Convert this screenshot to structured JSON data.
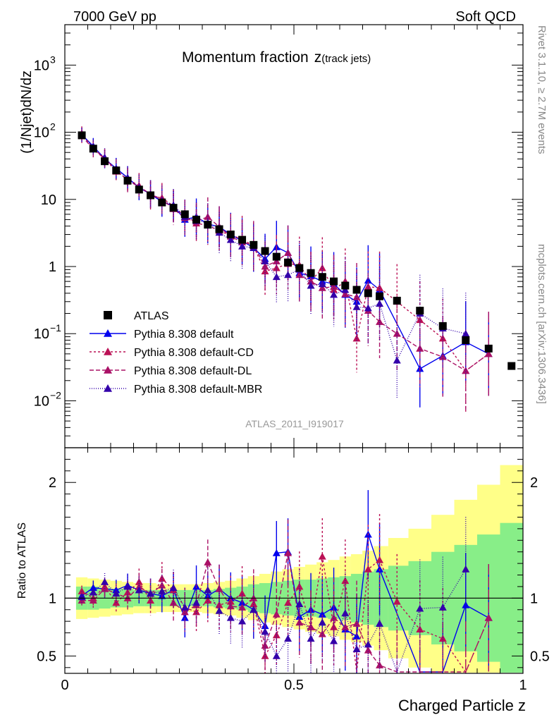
{
  "header": {
    "left": "7000 GeV pp",
    "right": "Soft QCD"
  },
  "side_labels": {
    "rivet": "Rivet 3.1.10, ≥ 2.7M events",
    "mcplots": "mcplots.cern.ch [arXiv:1306.3436]"
  },
  "chart_data": {
    "type": "scatter",
    "title_main": "Momentum fraction",
    "title_var": "z",
    "title_sub": "(track jets)",
    "analysis_id": "ATLAS_2011_I919017",
    "xlabel": "Charged Particle z",
    "ylabel": "(1/Njet)dN/dz",
    "ratio_ylabel": "Ratio to ATLAS",
    "xlim": [
      0,
      1
    ],
    "ylim": [
      0.002,
      4000
    ],
    "ratio_ylim": [
      0.35,
      2.3
    ],
    "yscale": "log",
    "x_ticks": [
      "0",
      "0.5",
      "1"
    ],
    "y_ticks": [
      {
        "v": 1000,
        "b": "10",
        "e": "3"
      },
      {
        "v": 100,
        "b": "10",
        "e": "2"
      },
      {
        "v": 10,
        "b": "10",
        "e": ""
      },
      {
        "v": 1,
        "b": "1",
        "e": ""
      },
      {
        "v": 0.1,
        "b": "10",
        "e": "−1"
      },
      {
        "v": 0.01,
        "b": "10",
        "e": "−2"
      }
    ],
    "ratio_ticks": [
      "0.5",
      "1",
      "2"
    ],
    "legend_position": "lower-left",
    "x": [
      0.037,
      0.062,
      0.087,
      0.112,
      0.137,
      0.162,
      0.187,
      0.212,
      0.237,
      0.262,
      0.287,
      0.312,
      0.337,
      0.362,
      0.387,
      0.412,
      0.437,
      0.462,
      0.487,
      0.512,
      0.537,
      0.562,
      0.587,
      0.612,
      0.637,
      0.662,
      0.687,
      0.725,
      0.775,
      0.825,
      0.875,
      0.925,
      0.975
    ],
    "band_inner": [
      0.1,
      0.1,
      0.09,
      0.08,
      0.08,
      0.07,
      0.07,
      0.07,
      0.07,
      0.07,
      0.07,
      0.07,
      0.08,
      0.09,
      0.1,
      0.12,
      0.13,
      0.14,
      0.15,
      0.16,
      0.16,
      0.17,
      0.18,
      0.19,
      0.21,
      0.23,
      0.25,
      0.28,
      0.32,
      0.4,
      0.46,
      0.55,
      0.65
    ],
    "band_outer": [
      0.18,
      0.17,
      0.16,
      0.15,
      0.14,
      0.13,
      0.13,
      0.12,
      0.12,
      0.12,
      0.12,
      0.13,
      0.14,
      0.15,
      0.17,
      0.19,
      0.21,
      0.23,
      0.25,
      0.27,
      0.29,
      0.31,
      0.33,
      0.36,
      0.38,
      0.41,
      0.45,
      0.52,
      0.6,
      0.72,
      0.85,
      0.98,
      1.15
    ],
    "series": [
      {
        "name": "ATLAS",
        "color": "#000000",
        "marker": "square",
        "values": [
          90,
          57,
          37,
          27,
          19,
          14,
          11.5,
          9,
          7.5,
          6,
          5,
          4.2,
          3.6,
          3,
          2.5,
          2.1,
          1.7,
          1.4,
          1.15,
          0.95,
          0.8,
          0.7,
          0.6,
          0.52,
          0.45,
          0.4,
          0.36,
          0.31,
          0.22,
          0.13,
          0.08,
          0.06,
          0.033
        ]
      },
      {
        "name": "Pythia 8.308 default",
        "color": "#0000ee",
        "marker": "triangle",
        "dash": "",
        "values": [
          92,
          62,
          40,
          29,
          21,
          15,
          12,
          9.2,
          8,
          5,
          5.5,
          4.3,
          3.9,
          3,
          2.4,
          1.9,
          1.3,
          1.95,
          1.6,
          0.8,
          0.72,
          0.6,
          0.55,
          0.38,
          0.3,
          0.62,
          0.45,
          null,
          0.03,
          0.047,
          0.075,
          0.05,
          null
        ],
        "ratio": [
          1.02,
          1.09,
          1.08,
          1.07,
          1.11,
          1.07,
          1.04,
          1.02,
          1.07,
          0.83,
          1.1,
          1.02,
          1.08,
          1.0,
          0.96,
          0.9,
          0.76,
          1.39,
          1.4,
          0.84,
          0.9,
          0.86,
          0.92,
          0.73,
          0.67,
          1.55,
          1.25,
          null,
          0.14,
          0.36,
          0.94,
          0.83,
          null
        ]
      },
      {
        "name": "Pythia 8.308 default-CD",
        "color": "#bb1155",
        "marker": "triangle",
        "dash": "3,3",
        "values": [
          96,
          57,
          41,
          26,
          20,
          16,
          11.3,
          10.5,
          8,
          5.5,
          4.4,
          4.1,
          3.4,
          2.9,
          2.6,
          2,
          0.85,
          0.95,
          1.1,
          1.05,
          0.6,
          0.95,
          0.45,
          0.6,
          0.085,
          0.5,
          0.48,
          0.3,
          0.16,
          0.085,
          0.028,
          0.05,
          null
        ],
        "ratio": [
          1.06,
          1.0,
          1.1,
          0.96,
          1.05,
          1.14,
          0.98,
          1.17,
          1.07,
          0.92,
          0.88,
          0.98,
          0.94,
          0.97,
          1.04,
          0.95,
          0.5,
          0.68,
          0.96,
          1.1,
          0.75,
          1.36,
          0.75,
          1.15,
          0.19,
          1.25,
          1.33,
          0.97,
          0.73,
          0.65,
          0.35,
          0.83,
          null
        ]
      },
      {
        "name": "Pythia 8.308 default-DL",
        "color": "#aa1166",
        "marker": "triangle",
        "dash": "6,3",
        "values": [
          88,
          56,
          40,
          28,
          19,
          15.5,
          12,
          10,
          7.2,
          5.3,
          4.7,
          5.5,
          3.9,
          2.8,
          2.3,
          2.1,
          1.0,
          1.2,
          1.6,
          0.75,
          0.6,
          0.48,
          0.5,
          0.39,
          0.35,
          0.22,
          0.15,
          0.1,
          0.06,
          0.045,
          0.028,
          0.05,
          null
        ],
        "ratio": [
          0.98,
          0.98,
          1.08,
          1.04,
          1.0,
          1.1,
          1.04,
          1.11,
          0.96,
          0.88,
          0.94,
          1.31,
          1.08,
          0.93,
          0.92,
          1.0,
          0.59,
          0.86,
          1.39,
          0.79,
          0.75,
          0.69,
          0.83,
          0.75,
          0.78,
          0.55,
          0.42,
          0.32,
          0.27,
          0.35,
          0.35,
          0.83,
          null
        ]
      },
      {
        "name": "Pythia 8.308 default-MBR",
        "color": "#3300aa",
        "marker": "triangle",
        "dash": "1,2",
        "values": [
          91,
          60,
          42,
          28,
          21,
          15,
          12,
          9.5,
          8.2,
          5.5,
          4.8,
          4.5,
          3.2,
          2.5,
          2.0,
          1.9,
          1.2,
          0.7,
          0.75,
          0.9,
          0.52,
          0.55,
          0.38,
          0.45,
          0.25,
          0.24,
          0.28,
          0.04,
          0.2,
          0.12,
          0.1,
          null,
          null
        ],
        "ratio": [
          1.01,
          1.05,
          1.14,
          1.04,
          1.1,
          1.07,
          1.04,
          1.06,
          1.09,
          0.92,
          0.96,
          1.07,
          0.89,
          0.83,
          0.8,
          0.9,
          0.71,
          0.5,
          0.65,
          0.95,
          0.65,
          0.79,
          0.63,
          0.87,
          0.56,
          0.6,
          0.78,
          0.13,
          0.91,
          0.92,
          1.25,
          null,
          null
        ]
      }
    ]
  }
}
